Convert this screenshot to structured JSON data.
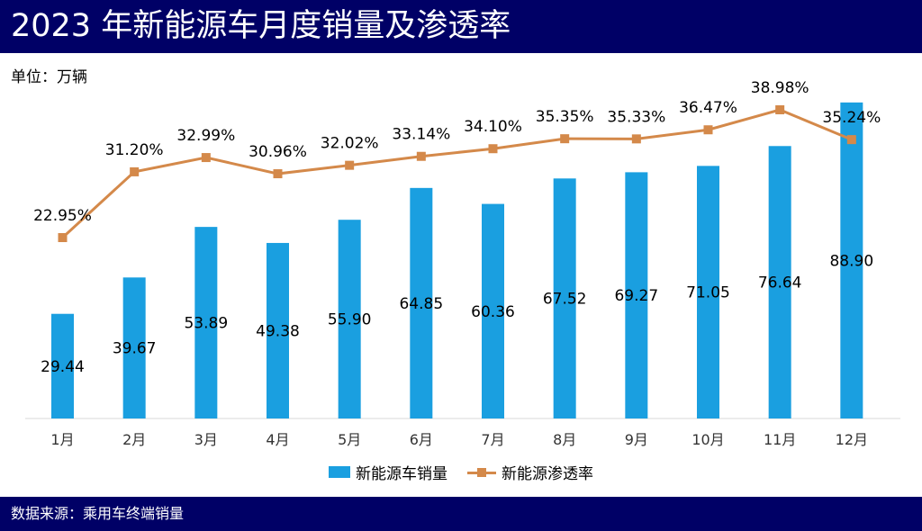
{
  "title": "2023 年新能源车月度销量及渗透率",
  "unit_label": "单位：万辆",
  "source": "数据来源：乘用车终端销量",
  "colors": {
    "header_bg": "#000066",
    "bar": "#1a9fe0",
    "line": "#d4894a"
  },
  "legend": {
    "bar_label": "新能源车销量",
    "line_label": "新能源渗透率"
  },
  "chart_data": {
    "type": "bar+line",
    "categories": [
      "1月",
      "2月",
      "3月",
      "4月",
      "5月",
      "6月",
      "7月",
      "8月",
      "9月",
      "10月",
      "11月",
      "12月"
    ],
    "series": [
      {
        "name": "新能源车销量",
        "type": "bar",
        "values": [
          29.44,
          39.67,
          53.89,
          49.38,
          55.9,
          64.85,
          60.36,
          67.52,
          69.27,
          71.05,
          76.64,
          88.9
        ],
        "labels": [
          "29.44",
          "39.67",
          "53.89",
          "49.38",
          "55.90",
          "64.85",
          "60.36",
          "67.52",
          "69.27",
          "71.05",
          "76.64",
          "88.90"
        ]
      },
      {
        "name": "新能源渗透率",
        "type": "line",
        "values": [
          22.95,
          31.2,
          32.99,
          30.96,
          32.02,
          33.14,
          34.1,
          35.35,
          35.33,
          36.47,
          38.98,
          35.24
        ],
        "labels": [
          "22.95%",
          "31.20%",
          "32.99%",
          "30.96%",
          "32.02%",
          "33.14%",
          "34.10%",
          "35.35%",
          "35.33%",
          "36.47%",
          "38.98%",
          "35.24%"
        ]
      }
    ],
    "bar_ylim": [
      0,
      90
    ],
    "line_ylim": [
      0,
      47
    ],
    "grid": false,
    "legend_position": "bottom"
  }
}
